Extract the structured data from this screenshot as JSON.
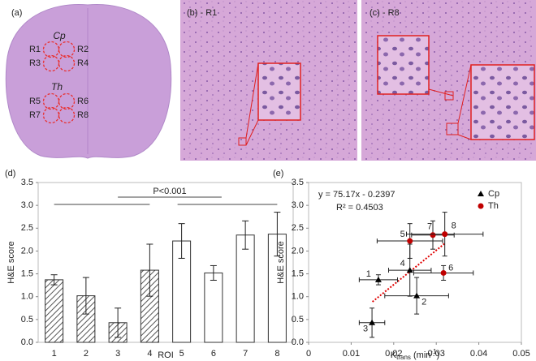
{
  "panels": {
    "a": {
      "label": "(a)",
      "groups": [
        {
          "name": "Cp",
          "regions": [
            "R1",
            "R2",
            "R3",
            "R4"
          ]
        },
        {
          "name": "Th",
          "regions": [
            "R5",
            "R6",
            "R7",
            "R8"
          ]
        }
      ]
    },
    "b": {
      "label": "(b) - R1"
    },
    "c": {
      "label": "(c) - R8"
    }
  },
  "chart_data": [
    {
      "type": "bar",
      "panel_label": "(d)",
      "xlabel": "ROI",
      "ylabel": "H&E score",
      "categories": [
        "1",
        "2",
        "3",
        "4",
        "5",
        "6",
        "7",
        "8"
      ],
      "values": [
        1.37,
        1.02,
        0.43,
        1.58,
        2.22,
        1.52,
        2.35,
        2.37
      ],
      "errors": [
        0.11,
        0.4,
        0.32,
        0.57,
        0.38,
        0.16,
        0.31,
        0.48
      ],
      "hatched": [
        true,
        true,
        true,
        true,
        false,
        false,
        false,
        false
      ],
      "annotation": "P<0.001",
      "ylim": [
        0,
        3.5
      ],
      "yticks": [
        {
          "value": 0,
          "label": "0.0"
        },
        {
          "value": 0.5,
          "label": "0.5"
        },
        {
          "value": 1,
          "label": "1.0"
        },
        {
          "value": 1.5,
          "label": "1.5"
        },
        {
          "value": 2,
          "label": "2.0"
        },
        {
          "value": 2.5,
          "label": "2.5"
        },
        {
          "value": 3,
          "label": "3.0"
        },
        {
          "value": 3.5,
          "label": "3.5"
        }
      ]
    },
    {
      "type": "scatter",
      "panel_label": "(e)",
      "ylabel": "H&E score",
      "xlabel": {
        "base": "K",
        "sub": "trans",
        "unit": " (min",
        "sup": "-1",
        "end": ")"
      },
      "series": [
        {
          "name": "Cp",
          "color": "#000000",
          "marker": "triangle",
          "labels": [
            "1",
            "2",
            "3",
            "4"
          ],
          "x": [
            0.0164,
            0.0254,
            0.0149,
            0.0238
          ],
          "values": [
            1.37,
            1.02,
            0.43,
            1.58
          ],
          "xerr": [
            0.0045,
            0.0075,
            0.003,
            0.005
          ],
          "yerr": [
            0.11,
            0.4,
            0.32,
            0.57
          ]
        },
        {
          "name": "Th",
          "color": "#c00000",
          "marker": "circle",
          "labels": [
            "5",
            "6",
            "7",
            "8"
          ],
          "x": [
            0.0238,
            0.0317,
            0.0292,
            0.032
          ],
          "values": [
            2.22,
            1.52,
            2.35,
            2.37
          ],
          "xerr": [
            0.0077,
            0.007,
            0.005,
            0.009
          ],
          "yerr": [
            0.38,
            0.16,
            0.31,
            0.48
          ]
        }
      ],
      "trendline": {
        "slope": 75.17,
        "intercept": -0.2397,
        "x": [
          0.015,
          0.032
        ],
        "color": "#e00000",
        "equation": "y = 75.17x - 0.2397",
        "r2": "R² = 0.4503"
      },
      "legend": "upper right",
      "xlim": [
        0,
        0.05
      ],
      "xticks": [
        0,
        0.01,
        0.02,
        0.03,
        0.04,
        0.05
      ],
      "ylim": [
        0,
        3.5
      ],
      "yticks": [
        {
          "value": 0,
          "label": "0.0"
        },
        {
          "value": 0.5,
          "label": "0.5"
        },
        {
          "value": 1,
          "label": "1.0"
        },
        {
          "value": 1.5,
          "label": "1.5"
        },
        {
          "value": 2,
          "label": "2.0"
        },
        {
          "value": 2.5,
          "label": "2.5"
        },
        {
          "value": 3,
          "label": "3.0"
        },
        {
          "value": 3.5,
          "label": "3.5"
        }
      ]
    }
  ]
}
